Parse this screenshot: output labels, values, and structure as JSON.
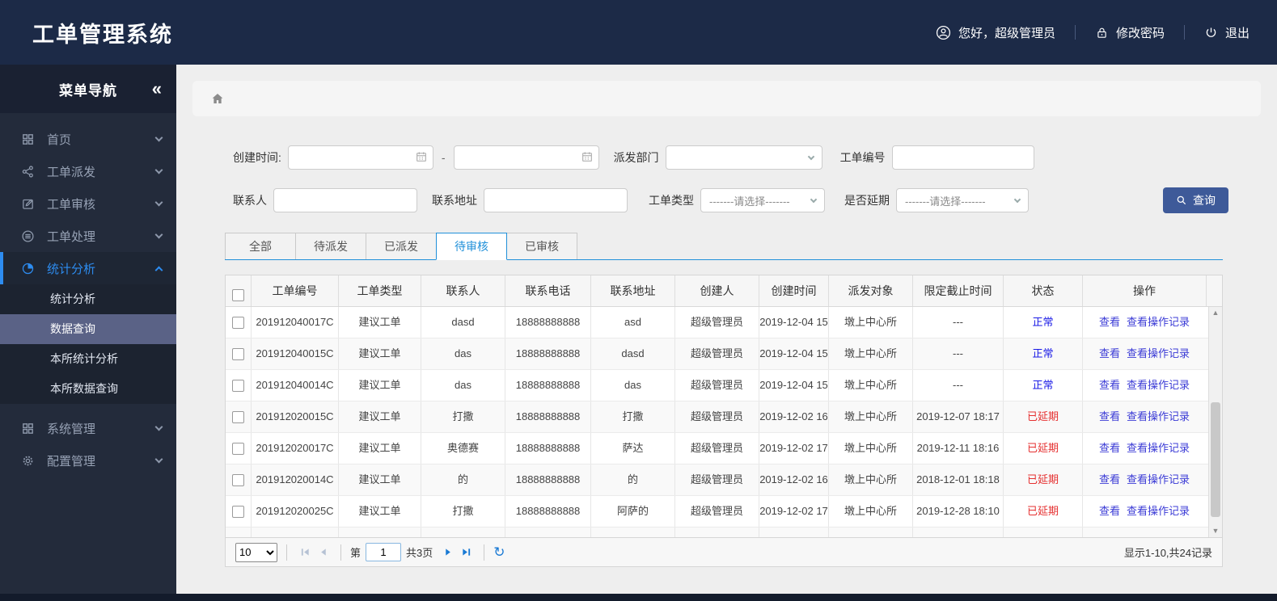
{
  "header": {
    "title": "工单管理系统",
    "user_greeting": "您好，超级管理员",
    "change_password": "修改密码",
    "logout": "退出"
  },
  "sidebar": {
    "title": "菜单导航",
    "items": [
      {
        "label": "首页"
      },
      {
        "label": "工单派发"
      },
      {
        "label": "工单审核"
      },
      {
        "label": "工单处理"
      },
      {
        "label": "统计分析",
        "children": [
          {
            "label": "统计分析"
          },
          {
            "label": "数据查询",
            "active": true
          },
          {
            "label": "本所统计分析"
          },
          {
            "label": "本所数据查询"
          }
        ]
      },
      {
        "label": "系统管理"
      },
      {
        "label": "配置管理"
      }
    ]
  },
  "filters": {
    "create_time_label": "创建时间:",
    "range_separator": "-",
    "dispatch_dept_label": "派发部门",
    "order_no_label": "工单编号",
    "contact_label": "联系人",
    "address_label": "联系地址",
    "order_type_label": "工单类型",
    "order_type_placeholder": "-------请选择-------",
    "is_delayed_label": "是否延期",
    "is_delayed_placeholder": "-------请选择-------",
    "search_button_label": "查询"
  },
  "tabs": [
    {
      "label": "全部"
    },
    {
      "label": "待派发"
    },
    {
      "label": "已派发"
    },
    {
      "label": "待审核",
      "active": true
    },
    {
      "label": "已审核"
    }
  ],
  "table": {
    "columns": [
      "工单编号",
      "工单类型",
      "联系人",
      "联系电话",
      "联系地址",
      "创建人",
      "创建时间",
      "派发对象",
      "限定截止时间",
      "状态",
      "操作"
    ],
    "action_view": "查看",
    "action_view_log": "查看操作记录",
    "rows": [
      {
        "order_no": "201912040017C",
        "order_type": "建议工单",
        "contact": "dasd",
        "phone": "18888888888",
        "address": "asd",
        "creator": "超级管理员",
        "create_time": "2019-12-04 15",
        "dispatch_target": "墩上中心所",
        "deadline": "---",
        "status": "正常",
        "status_type": "normal"
      },
      {
        "order_no": "201912040015C",
        "order_type": "建议工单",
        "contact": "das",
        "phone": "18888888888",
        "address": "dasd",
        "creator": "超级管理员",
        "create_time": "2019-12-04 15",
        "dispatch_target": "墩上中心所",
        "deadline": "---",
        "status": "正常",
        "status_type": "normal"
      },
      {
        "order_no": "201912040014C",
        "order_type": "建议工单",
        "contact": "das",
        "phone": "18888888888",
        "address": "das",
        "creator": "超级管理员",
        "create_time": "2019-12-04 15",
        "dispatch_target": "墩上中心所",
        "deadline": "---",
        "status": "正常",
        "status_type": "normal"
      },
      {
        "order_no": "201912020015C",
        "order_type": "建议工单",
        "contact": "打撒",
        "phone": "18888888888",
        "address": "打撒",
        "creator": "超级管理员",
        "create_time": "2019-12-02 16",
        "dispatch_target": "墩上中心所",
        "deadline": "2019-12-07 18:17",
        "status": "已延期",
        "status_type": "delayed"
      },
      {
        "order_no": "201912020017C",
        "order_type": "建议工单",
        "contact": "奥德赛",
        "phone": "18888888888",
        "address": "萨达",
        "creator": "超级管理员",
        "create_time": "2019-12-02 17",
        "dispatch_target": "墩上中心所",
        "deadline": "2019-12-11 18:16",
        "status": "已延期",
        "status_type": "delayed"
      },
      {
        "order_no": "201912020014C",
        "order_type": "建议工单",
        "contact": "的",
        "phone": "18888888888",
        "address": "的",
        "creator": "超级管理员",
        "create_time": "2019-12-02 16",
        "dispatch_target": "墩上中心所",
        "deadline": "2018-12-01 18:18",
        "status": "已延期",
        "status_type": "delayed"
      },
      {
        "order_no": "201912020025C",
        "order_type": "建议工单",
        "contact": "打撒",
        "phone": "18888888888",
        "address": "阿萨的",
        "creator": "超级管理员",
        "create_time": "2019-12-02 17",
        "dispatch_target": "墩上中心所",
        "deadline": "2019-12-28 18:10",
        "status": "已延期",
        "status_type": "delayed"
      }
    ]
  },
  "pagination": {
    "page_size": "10",
    "page_prefix": "第",
    "current_page": "1",
    "total_pages": "共3页",
    "summary": "显示1-10,共24记录"
  },
  "colors": {
    "accent": "#2d8cf0",
    "status_normal": "#1a1ae6",
    "status_delayed": "#e53030",
    "link": "#3b3bd6",
    "search_button": "#3e5a99",
    "header_bg": "#1c2a47",
    "sidebar_bg": "#232b3b",
    "submenu_active_bg": "#5a6286"
  }
}
